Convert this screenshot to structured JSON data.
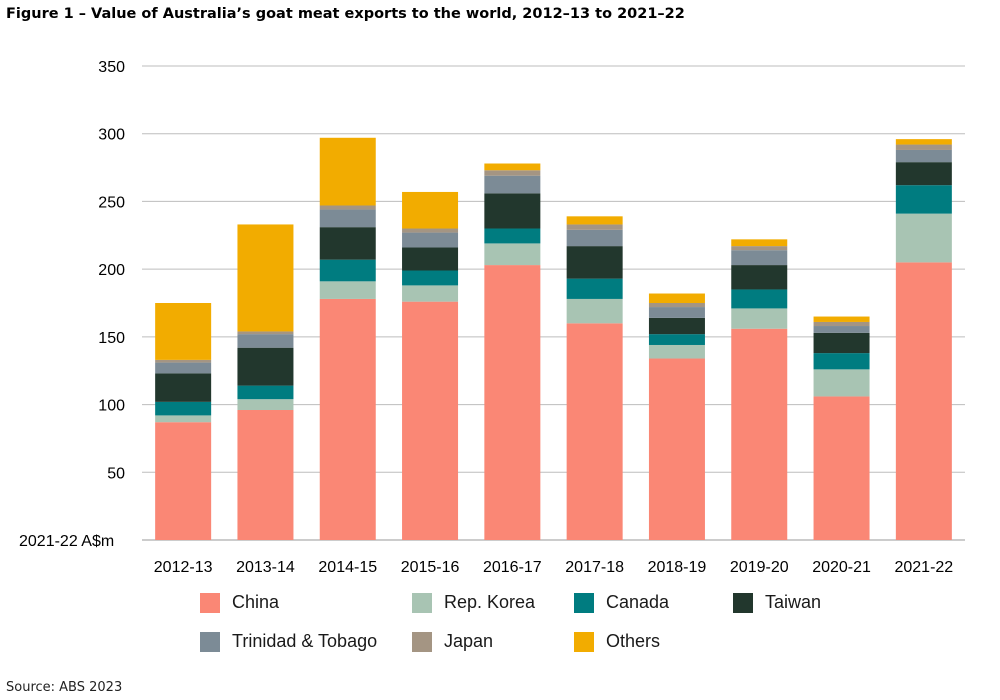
{
  "title": "Figure 1 – Value of Australia’s goat meat exports to the world, 2012–13 to 2021–22",
  "source": "Source: ABS 2023",
  "chart_data": {
    "type": "bar",
    "stacked": true,
    "title": "Figure 1 – Value of Australia’s goat meat exports to the world, 2012–13 to 2021–22",
    "ylabel": "2021-22 A$m",
    "ylim": [
      0,
      350
    ],
    "yticks": [
      50,
      100,
      150,
      200,
      250,
      300,
      350
    ],
    "grid": true,
    "legend_position": "bottom",
    "categories": [
      "2012-13",
      "2013-14",
      "2014-15",
      "2015-16",
      "2016-17",
      "2017-18",
      "2018-19",
      "2019-20",
      "2020-21",
      "2021-22"
    ],
    "series": [
      {
        "name": "China",
        "color": "#FA8775",
        "values": [
          87,
          96,
          178,
          176,
          203,
          160,
          134,
          156,
          106,
          205
        ]
      },
      {
        "name": "Rep. Korea",
        "color": "#A8C4B3",
        "values": [
          5,
          8,
          13,
          12,
          16,
          18,
          10,
          15,
          20,
          36
        ]
      },
      {
        "name": "Canada",
        "color": "#007C80",
        "values": [
          10,
          10,
          16,
          11,
          11,
          15,
          8,
          14,
          12,
          21
        ]
      },
      {
        "name": "Taiwan",
        "color": "#22372D",
        "values": [
          21,
          28,
          24,
          17,
          26,
          24,
          12,
          18,
          15,
          17
        ]
      },
      {
        "name": "Trinidad & Tobago",
        "color": "#7C8B96",
        "values": [
          8,
          10,
          13,
          11,
          13,
          12,
          8,
          11,
          5,
          9
        ]
      },
      {
        "name": "Japan",
        "color": "#A49583",
        "values": [
          2,
          2,
          3,
          3,
          4,
          4,
          3,
          3,
          3,
          4
        ]
      },
      {
        "name": "Others",
        "color": "#F2AC00",
        "values": [
          42,
          79,
          50,
          27,
          5,
          6,
          7,
          5,
          4,
          4
        ]
      }
    ]
  }
}
